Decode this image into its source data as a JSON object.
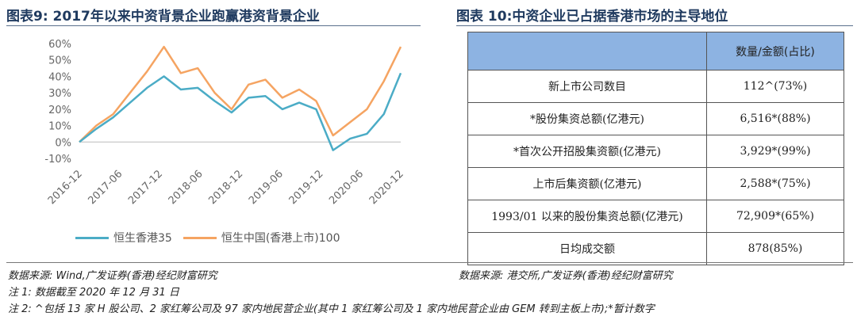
{
  "left_figure": {
    "title": "图表9:  2017年以来中资背景企业跑赢港资背景企业",
    "source": "数据来源: Wind,广发证券(香港)经纪财富研究"
  },
  "right_figure": {
    "title": "图表 10:中资企业已占据香港市场的主导地位",
    "source": "数据来源: 港交所,广发证券(香港)经纪财富研究"
  },
  "notes": {
    "note1": "注 1: 数据截至 2020 年 12 月 31 日",
    "note2": "注 2: ^包括 13 家 H 股公司、2 家红筹公司及 97 家内地民营企业(其中 1 家红筹公司及 1 家内地民营企业由 GEM 转到主板上市);*暂计数字"
  },
  "chart_data": {
    "type": "line",
    "x": [
      "2016-12",
      "2017-03",
      "2017-06",
      "2017-09",
      "2017-12",
      "2018-01",
      "2018-03",
      "2018-06",
      "2018-09",
      "2018-12",
      "2019-03",
      "2019-06",
      "2019-09",
      "2019-12",
      "2020-01",
      "2020-03",
      "2020-06",
      "2020-09",
      "2020-11",
      "2020-12"
    ],
    "x_tick_labels": [
      "2016-12",
      "2017-06",
      "2017-12",
      "2018-06",
      "2018-12",
      "2019-06",
      "2019-12",
      "2020-06",
      "2020-12"
    ],
    "series": [
      {
        "name": "恒生香港35",
        "color": "#4bacc6",
        "values": [
          0,
          8,
          15,
          24,
          33,
          40,
          32,
          33,
          25,
          18,
          27,
          28,
          20,
          24,
          20,
          -5,
          2,
          5,
          17,
          42
        ]
      },
      {
        "name": "恒生中国(香港上市)100",
        "color": "#f5a462",
        "values": [
          0,
          10,
          17,
          30,
          43,
          58,
          42,
          45,
          30,
          20,
          35,
          38,
          27,
          32,
          25,
          4,
          12,
          20,
          37,
          58
        ]
      }
    ],
    "ylim": [
      -10,
      60
    ],
    "yticks": [
      -10,
      0,
      10,
      20,
      30,
      40,
      50,
      60
    ],
    "ytick_format": "percent",
    "legend": "bottom"
  },
  "table": {
    "header": [
      "",
      "数量/金额(占比)"
    ],
    "rows": [
      [
        "新上市公司数目",
        "112^(73%)"
      ],
      [
        "*股份集资总额(亿港元)",
        "6,516*(88%)"
      ],
      [
        "*首次公开招股集资额(亿港元)",
        "3,929*(99%)"
      ],
      [
        "上市后集资额(亿港元)",
        "2,588*(75%)"
      ],
      [
        "1993/01 以来的股份集资总额(亿港元)",
        "72,909*(65%)"
      ],
      [
        "日均成交额",
        "878(85%)"
      ]
    ]
  }
}
